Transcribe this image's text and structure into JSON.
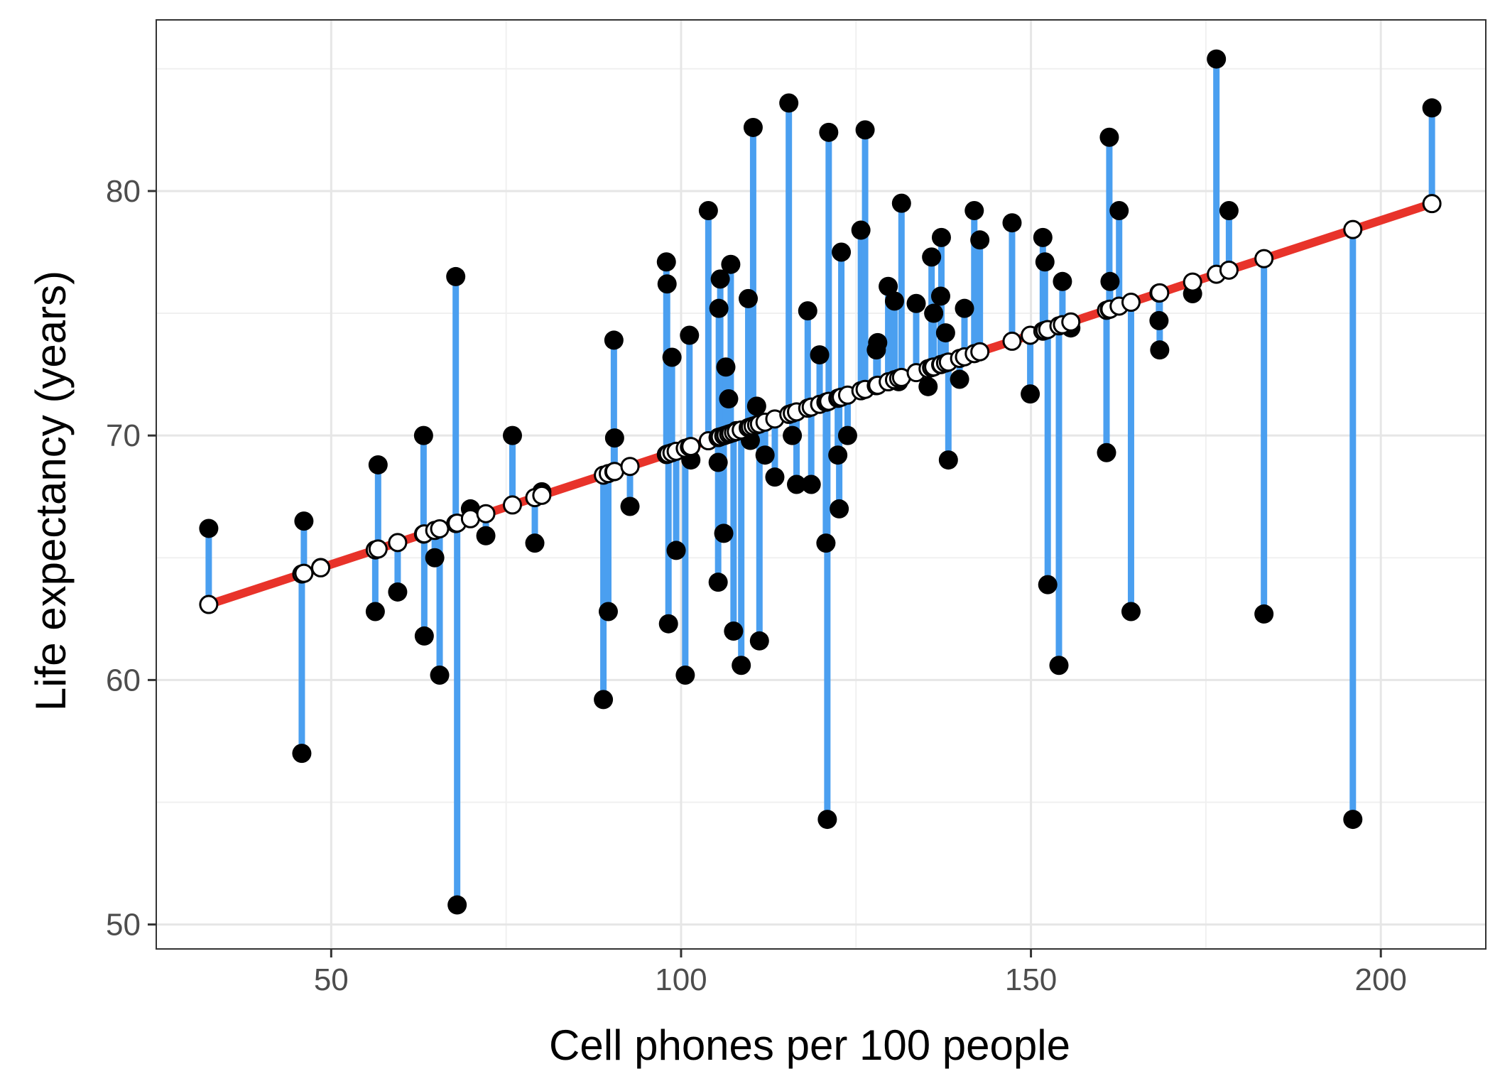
{
  "colors": {
    "background": "#ffffff",
    "panel_border": "#333333",
    "grid_major": "#e6e6e6",
    "grid_minor": "#f0f0f0",
    "residual": "#4a9ff0",
    "fit_line": "#e8332a",
    "observed_point": "#000000",
    "fitted_point_fill": "#ffffff",
    "fitted_point_stroke": "#000000"
  },
  "chart_data": {
    "type": "scatter",
    "xlabel": "Cell phones per 100 people",
    "ylabel": "Life expectancy (years)",
    "xlim": [
      25,
      215
    ],
    "ylim": [
      49,
      87
    ],
    "xticks": [
      50,
      100,
      150,
      200
    ],
    "yticks": [
      50,
      60,
      70,
      80
    ],
    "grid": true,
    "regression": {
      "intercept": 60.04,
      "slope": 0.0938
    },
    "x": [
      32.5,
      45.8,
      46.1,
      48.5,
      56.3,
      56.7,
      59.5,
      63.2,
      63.3,
      64.8,
      65.5,
      67.8,
      68.0,
      69.9,
      72.1,
      75.9,
      79.1,
      80.1,
      88.9,
      89.6,
      90.4,
      90.5,
      92.7,
      97.9,
      98.0,
      98.2,
      98.7,
      99.3,
      100.6,
      101.2,
      101.4,
      103.9,
      105.3,
      105.3,
      105.4,
      105.6,
      106.1,
      106.4,
      106.8,
      107.1,
      107.5,
      107.9,
      108.6,
      109.6,
      109.9,
      110.3,
      110.8,
      111.2,
      112.0,
      113.4,
      115.4,
      115.9,
      116.5,
      118.1,
      118.6,
      119.8,
      120.7,
      120.9,
      121.1,
      122.4,
      122.6,
      122.9,
      123.8,
      125.7,
      126.3,
      127.9,
      128.1,
      129.6,
      130.5,
      131.1,
      131.5,
      133.6,
      135.3,
      135.8,
      136.1,
      137.1,
      137.2,
      137.8,
      138.2,
      139.8,
      140.5,
      141.9,
      142.7,
      147.3,
      149.9,
      151.7,
      152.0,
      152.4,
      154.0,
      154.5,
      155.7,
      160.8,
      161.2,
      161.3,
      162.6,
      164.3,
      168.3,
      168.4,
      173.1,
      176.5,
      178.3,
      183.3,
      196.0,
      207.3
    ],
    "y": [
      66.2,
      57.0,
      66.5,
      64.6,
      62.8,
      68.8,
      63.6,
      70.0,
      61.8,
      65.0,
      60.2,
      76.5,
      50.8,
      67.0,
      65.9,
      70.0,
      65.6,
      67.7,
      59.2,
      62.8,
      73.9,
      69.9,
      67.1,
      77.1,
      76.2,
      62.3,
      73.2,
      65.3,
      60.2,
      74.1,
      69.0,
      79.2,
      68.9,
      64.0,
      75.2,
      76.4,
      66.0,
      72.8,
      71.5,
      77.0,
      62.0,
      70.2,
      60.6,
      75.6,
      69.8,
      82.6,
      71.2,
      61.6,
      69.2,
      68.3,
      83.6,
      70.0,
      68.0,
      75.1,
      68.0,
      73.3,
      65.6,
      54.3,
      82.4,
      69.2,
      67.0,
      77.5,
      70.0,
      78.4,
      82.5,
      73.5,
      73.8,
      76.1,
      75.5,
      72.2,
      79.5,
      75.4,
      72.0,
      77.3,
      75.0,
      75.7,
      78.1,
      74.2,
      69.0,
      72.3,
      75.2,
      79.2,
      78.0,
      78.7,
      71.7,
      78.1,
      77.1,
      63.9,
      60.6,
      76.3,
      74.4,
      69.3,
      82.2,
      76.3,
      79.2,
      62.8,
      74.7,
      73.5,
      75.8,
      85.4,
      79.2,
      62.7,
      54.3,
      83.4
    ]
  }
}
